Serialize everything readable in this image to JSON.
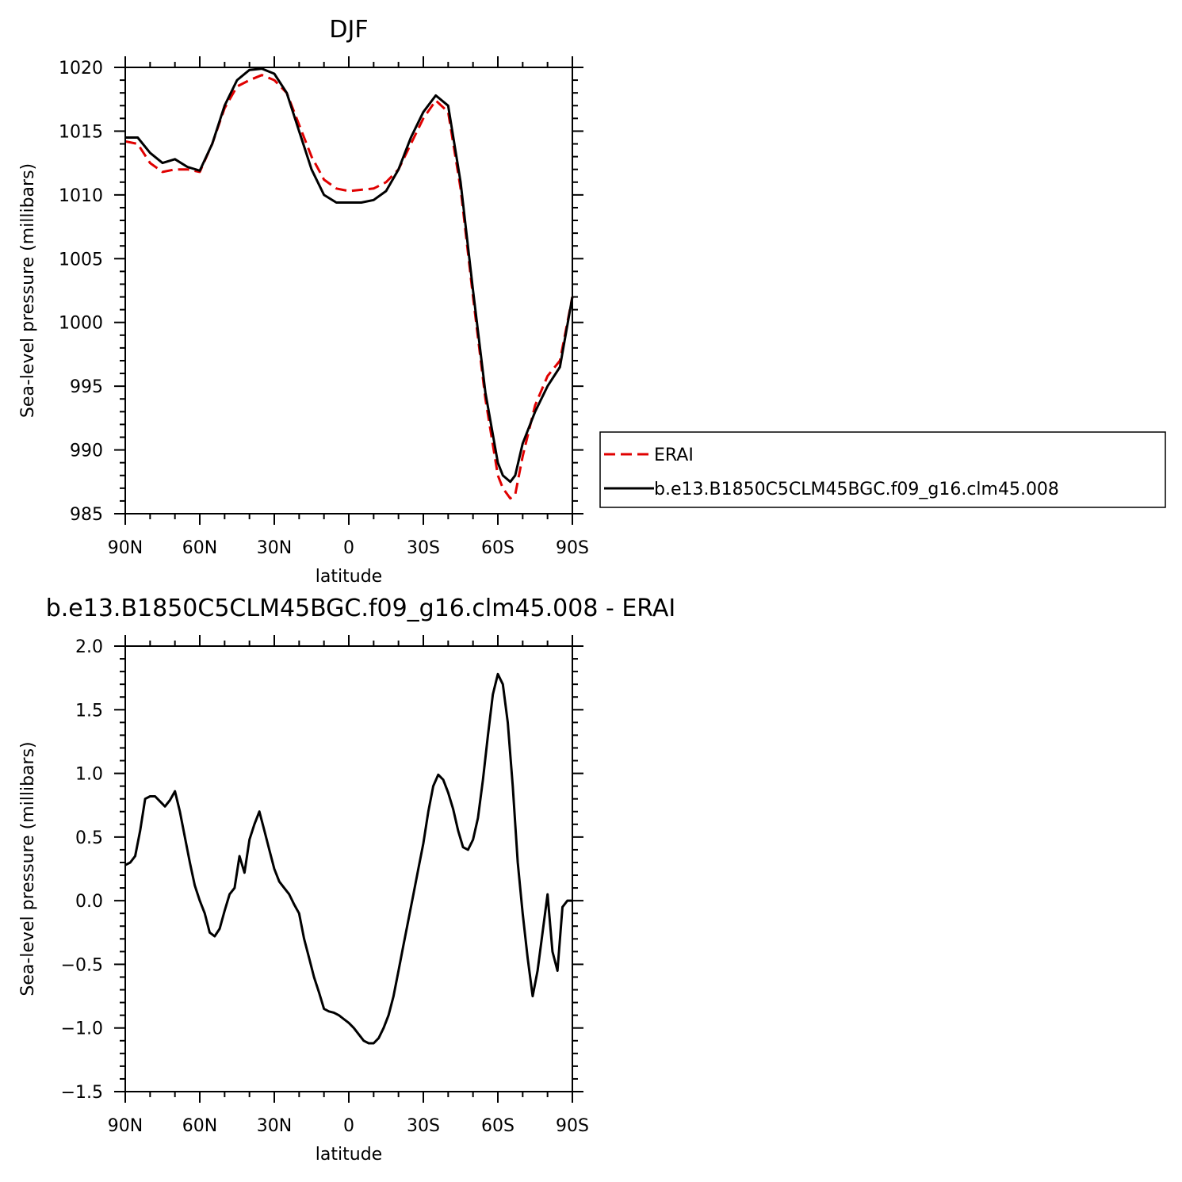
{
  "chart_data": [
    {
      "type": "line",
      "title": "DJF",
      "xlabel": "latitude",
      "ylabel": "Sea-level pressure (millibars)",
      "xlim": [
        90,
        -90
      ],
      "ylim": [
        985,
        1020
      ],
      "xticks": [
        90,
        60,
        30,
        0,
        -30,
        -60,
        -90
      ],
      "xtick_labels": [
        "90N",
        "60N",
        "30N",
        "0",
        "30S",
        "60S",
        "90S"
      ],
      "yticks": [
        985,
        990,
        995,
        1000,
        1005,
        1010,
        1015,
        1020
      ],
      "ytick_labels": [
        "985",
        "990",
        "995",
        "1000",
        "1005",
        "1010",
        "1015",
        "1020"
      ],
      "legend_position": "right",
      "series": [
        {
          "name": "ERAI",
          "color": "#e00000",
          "dash": "dashed",
          "x": [
            90,
            85,
            80,
            75,
            70,
            65,
            60,
            55,
            50,
            45,
            40,
            35,
            30,
            25,
            20,
            15,
            10,
            5,
            0,
            -5,
            -10,
            -15,
            -20,
            -25,
            -30,
            -35,
            -40,
            -45,
            -50,
            -55,
            -60,
            -62,
            -65,
            -67,
            -70,
            -75,
            -80,
            -85,
            -90
          ],
          "y": [
            1014.2,
            1014.0,
            1012.5,
            1011.8,
            1012.0,
            1012.0,
            1011.8,
            1014.0,
            1016.8,
            1018.5,
            1019.0,
            1019.4,
            1019.0,
            1018.0,
            1015.5,
            1013.0,
            1011.2,
            1010.5,
            1010.3,
            1010.4,
            1010.5,
            1011.0,
            1012.0,
            1014.0,
            1016.0,
            1017.4,
            1016.5,
            1010.5,
            1002.0,
            994.0,
            988.0,
            987.0,
            986.2,
            986.5,
            989.5,
            993.5,
            995.8,
            997.0,
            1002.0
          ]
        },
        {
          "name": "b.e13.B1850C5CLM45BGC.f09_g16.clm45.008",
          "color": "#000000",
          "dash": "solid",
          "x": [
            90,
            85,
            80,
            75,
            70,
            65,
            60,
            55,
            50,
            45,
            40,
            35,
            30,
            25,
            20,
            15,
            10,
            5,
            0,
            -5,
            -10,
            -15,
            -20,
            -25,
            -30,
            -35,
            -40,
            -45,
            -50,
            -55,
            -60,
            -62,
            -65,
            -67,
            -70,
            -75,
            -80,
            -85,
            -90
          ],
          "y": [
            1014.5,
            1014.5,
            1013.3,
            1012.5,
            1012.8,
            1012.2,
            1011.9,
            1014.0,
            1017.0,
            1019.0,
            1019.8,
            1019.9,
            1019.5,
            1018.0,
            1015.0,
            1012.0,
            1010.0,
            1009.4,
            1009.4,
            1009.4,
            1009.6,
            1010.3,
            1012.0,
            1014.5,
            1016.5,
            1017.8,
            1017.0,
            1011.0,
            1002.5,
            994.5,
            989.0,
            988.0,
            987.5,
            988.0,
            990.5,
            993.0,
            995.0,
            996.5,
            1002.0
          ]
        }
      ]
    },
    {
      "type": "line",
      "title": "b.e13.B1850C5CLM45BGC.f09_g16.clm45.008 - ERAI",
      "xlabel": "latitude",
      "ylabel": "Sea-level pressure (millibars)",
      "xlim": [
        90,
        -90
      ],
      "ylim": [
        -1.5,
        2.0
      ],
      "xticks": [
        90,
        60,
        30,
        0,
        -30,
        -60,
        -90
      ],
      "xtick_labels": [
        "90N",
        "60N",
        "30N",
        "0",
        "30S",
        "60S",
        "90S"
      ],
      "yticks": [
        -1.5,
        -1.0,
        -0.5,
        0.0,
        0.5,
        1.0,
        1.5,
        2.0
      ],
      "ytick_labels": [
        "−1.5",
        "−1.0",
        "−0.5",
        "0.0",
        "0.5",
        "1.0",
        "1.5",
        "2.0"
      ],
      "series": [
        {
          "name": "",
          "color": "#000000",
          "dash": "solid",
          "x": [
            90,
            88,
            86,
            84,
            82,
            80,
            78,
            76,
            74,
            72,
            70,
            68,
            66,
            64,
            62,
            60,
            58,
            56,
            54,
            52,
            50,
            48,
            46,
            44,
            42,
            40,
            38,
            36,
            34,
            32,
            30,
            28,
            26,
            24,
            22,
            20,
            18,
            16,
            14,
            12,
            10,
            8,
            6,
            4,
            2,
            0,
            -2,
            -4,
            -6,
            -8,
            -10,
            -12,
            -14,
            -16,
            -18,
            -20,
            -22,
            -24,
            -26,
            -28,
            -30,
            -32,
            -34,
            -36,
            -38,
            -40,
            -42,
            -44,
            -46,
            -48,
            -50,
            -52,
            -54,
            -56,
            -58,
            -60,
            -62,
            -64,
            -66,
            -68,
            -70,
            -72,
            -74,
            -76,
            -78,
            -80,
            -82,
            -84,
            -86,
            -88,
            -90
          ],
          "y": [
            0.28,
            0.3,
            0.35,
            0.55,
            0.8,
            0.82,
            0.82,
            0.78,
            0.74,
            0.79,
            0.86,
            0.7,
            0.5,
            0.3,
            0.12,
            0.0,
            -0.1,
            -0.25,
            -0.28,
            -0.22,
            -0.08,
            0.05,
            0.1,
            0.35,
            0.22,
            0.48,
            0.6,
            0.7,
            0.55,
            0.4,
            0.25,
            0.15,
            0.1,
            0.05,
            -0.03,
            -0.1,
            -0.3,
            -0.45,
            -0.6,
            -0.72,
            -0.85,
            -0.87,
            -0.88,
            -0.9,
            -0.93,
            -0.96,
            -1.0,
            -1.05,
            -1.1,
            -1.12,
            -1.12,
            -1.08,
            -1.0,
            -0.9,
            -0.75,
            -0.55,
            -0.35,
            -0.15,
            0.05,
            0.25,
            0.45,
            0.7,
            0.9,
            0.99,
            0.95,
            0.85,
            0.72,
            0.55,
            0.42,
            0.4,
            0.48,
            0.65,
            0.95,
            1.3,
            1.62,
            1.78,
            1.7,
            1.4,
            0.9,
            0.3,
            -0.1,
            -0.45,
            -0.75,
            -0.55,
            -0.25,
            0.05,
            -0.4,
            -0.55,
            -0.05,
            0.0,
            0.0
          ]
        }
      ]
    }
  ],
  "legend": {
    "items": [
      {
        "label": "ERAI",
        "color": "#e00000",
        "dash": "dashed"
      },
      {
        "label": "b.e13.B1850C5CLM45BGC.f09_g16.clm45.008",
        "color": "#000000",
        "dash": "solid"
      }
    ]
  }
}
